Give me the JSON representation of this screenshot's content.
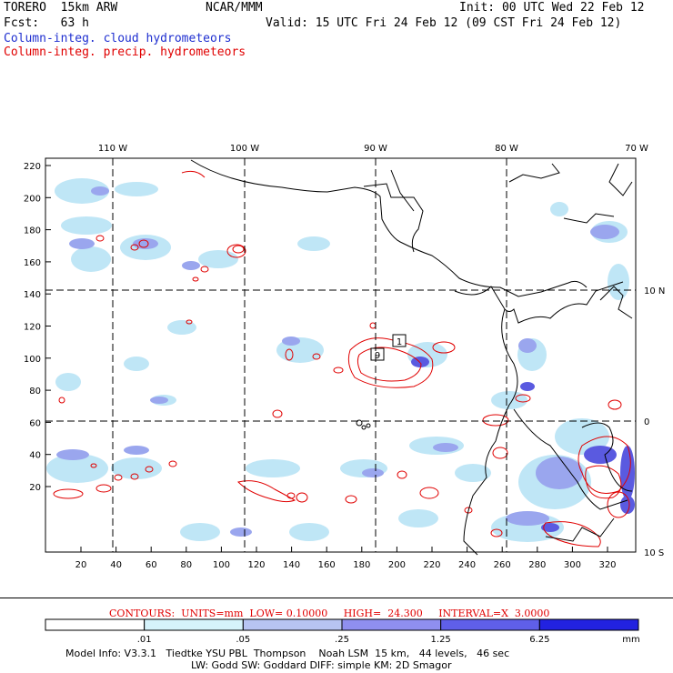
{
  "header": {
    "model": "TORERO  15km ARW",
    "org": "NCAR/MMM",
    "init": "Init: 00 UTC Wed 22 Feb 12",
    "fcst": "Fcst:   63 h",
    "valid": "Valid: 15 UTC Fri 24 Feb 12 (09 CST Fri 24 Feb 12)",
    "field1": "Column-integ. cloud hydrometeors",
    "field2": "Column-integ. precip. hydrometeors"
  },
  "map": {
    "top_labels": [
      "110 W",
      "100 W",
      "90 W",
      "80 W",
      "70 W"
    ],
    "right_labels": [
      "10 N",
      "0",
      "10 S"
    ],
    "y_ticks": [
      "220",
      "200",
      "180",
      "160",
      "140",
      "120",
      "100",
      "80",
      "60",
      "40",
      "20"
    ],
    "x_ticks": [
      "20",
      "40",
      "60",
      "80",
      "100",
      "120",
      "140",
      "160",
      "180",
      "200",
      "220",
      "240",
      "260",
      "280",
      "300",
      "320"
    ],
    "contour_labels": [
      "1",
      "9"
    ],
    "colors": {
      "cloud_light": "#bfe6f6",
      "cloud_mid": "#9aa6ee",
      "cloud_dark": "#5a5ae0",
      "precip": "#e00000",
      "coast": "#000000"
    }
  },
  "contours_info": "CONTOURS:  UNITS=mm  LOW= 0.10000     HIGH=  24.300     INTERVAL=X  3.0000",
  "colorbar": {
    "labels": [
      ".01",
      ".05",
      ".25",
      "1.25",
      "6.25",
      "mm"
    ],
    "colors": [
      "#ffffff",
      "#d6f3fb",
      "#b7c4f2",
      "#8f8ff0",
      "#5f5fe8",
      "#2222e0"
    ]
  },
  "footer": {
    "line1": "Model Info: V3.3.1   Tiedtke YSU PBL  Thompson    Noah LSM  15 km,   44 levels,   46 sec",
    "line2": "LW: Godd SW: Goddard DIFF: simple KM: 2D Smagor"
  }
}
